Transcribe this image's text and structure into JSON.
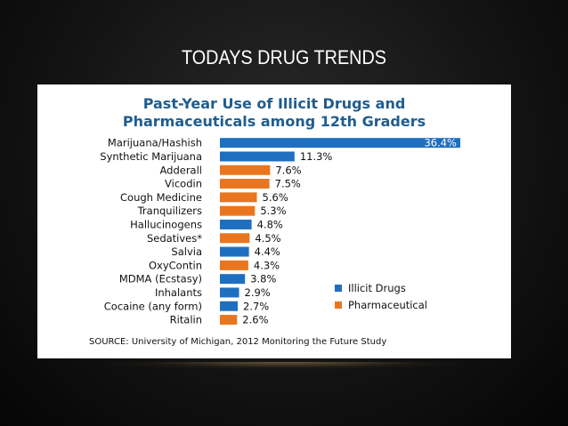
{
  "slide_title": "TODAYS DRUG TRENDS",
  "chart_data": {
    "type": "bar",
    "orientation": "horizontal",
    "title_lines": [
      "Past-Year Use of Illicit Drugs and",
      "Pharmaceuticals among 12th Graders"
    ],
    "categories": [
      "Marijuana/Hashish",
      "Synthetic Marijuana",
      "Adderall",
      "Vicodin",
      "Cough Medicine",
      "Tranquilizers",
      "Hallucinogens",
      "Sedatives*",
      "Salvia",
      "OxyContin",
      "MDMA (Ecstasy)",
      "Inhalants",
      "Cocaine (any form)",
      "Ritalin"
    ],
    "values": [
      36.4,
      11.3,
      7.6,
      7.5,
      5.6,
      5.3,
      4.8,
      4.5,
      4.4,
      4.3,
      3.8,
      2.9,
      2.7,
      2.6
    ],
    "value_labels": [
      "36.4%",
      "11.3%",
      "7.6%",
      "7.5%",
      "5.6%",
      "5.3%",
      "4.8%",
      "4.5%",
      "4.4%",
      "4.3%",
      "3.8%",
      "2.9%",
      "2.7%",
      "2.6%"
    ],
    "group": [
      "illicit",
      "illicit",
      "pharma",
      "pharma",
      "pharma",
      "pharma",
      "illicit",
      "pharma",
      "illicit",
      "pharma",
      "illicit",
      "illicit",
      "illicit",
      "pharma"
    ],
    "legend": [
      {
        "key": "illicit",
        "label": "Illicit Drugs",
        "color": "#1f6fc0"
      },
      {
        "key": "pharma",
        "label": "Pharmaceutical",
        "color": "#e9761f"
      }
    ],
    "legend_position": "right",
    "xlim": [
      0,
      36.4
    ],
    "grid": false,
    "source": "SOURCE: University of Michigan, 2012 Monitoring the Future Study"
  }
}
